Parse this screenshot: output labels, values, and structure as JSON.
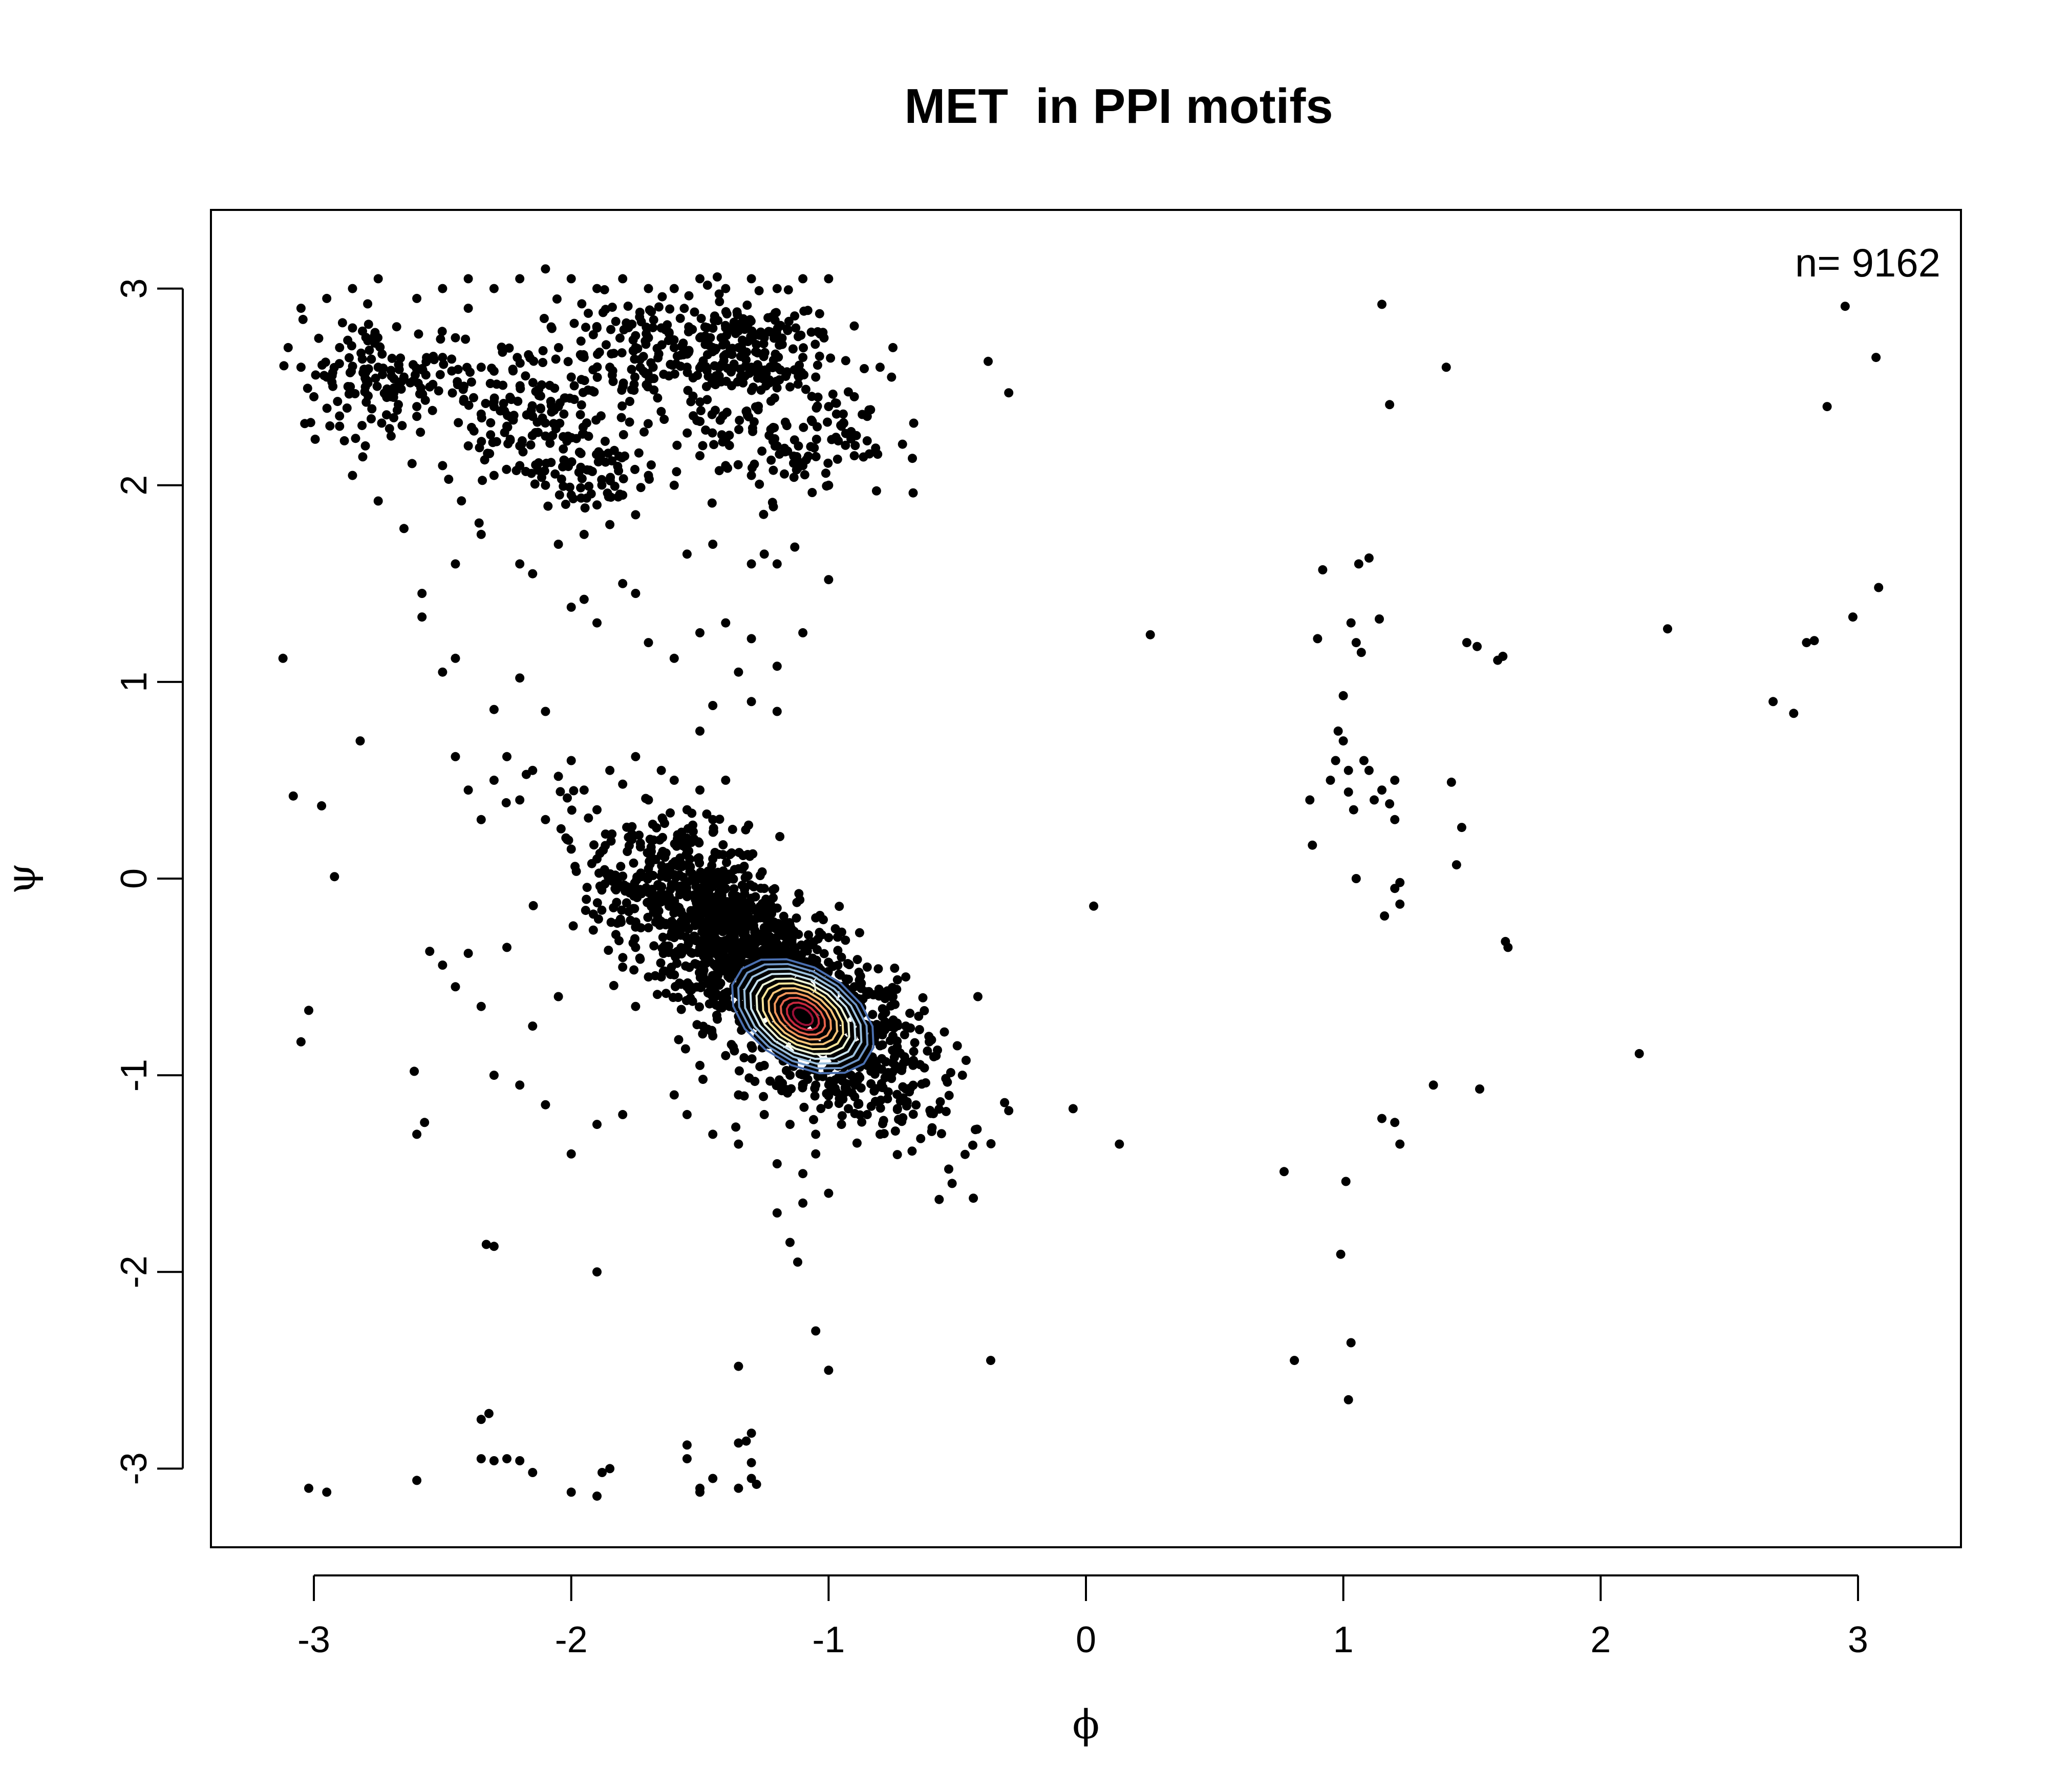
{
  "chart_data": {
    "type": "scatter",
    "title": "MET  in PPI motifs",
    "xlabel": "ϕ",
    "ylabel": "ψ",
    "xlim": [
      -3.4,
      3.4
    ],
    "ylim": [
      -3.4,
      3.4
    ],
    "xticks": [
      -3,
      -2,
      -1,
      0,
      1,
      2,
      3
    ],
    "yticks": [
      -3,
      -2,
      -1,
      0,
      1,
      2,
      3
    ],
    "xtick_labels": [
      "-3",
      "-2",
      "-1",
      "0",
      "1",
      "2",
      "3"
    ],
    "ytick_labels": [
      "-3",
      "-2",
      "-1",
      "0",
      "1",
      "2",
      "3"
    ],
    "annotation": "n= 9162",
    "grid": false,
    "point_color": "#000000",
    "contour_center": [
      -1.1,
      -0.7
    ],
    "contour_colors": [
      "#4a6fb0",
      "#6f96c7",
      "#9dc1dd",
      "#c9e3ee",
      "#eef6d8",
      "#fbe59a",
      "#f8c57a",
      "#f3985c",
      "#e4604b",
      "#c8283e",
      "#9b0f36"
    ],
    "points": [
      [
        -3.12,
        1.12
      ],
      [
        -3.08,
        0.42
      ],
      [
        -3.05,
        -0.83
      ],
      [
        -3.02,
        -0.67
      ],
      [
        -2.97,
        0.37
      ],
      [
        -2.92,
        0.01
      ],
      [
        -2.82,
        0.7
      ],
      [
        -2.6,
        -1.3
      ],
      [
        -2.57,
        -1.24
      ],
      [
        -2.61,
        -0.98
      ],
      [
        -2.55,
        -0.37
      ],
      [
        -2.5,
        -0.44
      ],
      [
        -2.45,
        -0.55
      ],
      [
        -2.4,
        -0.38
      ],
      [
        -2.35,
        -0.65
      ],
      [
        -2.3,
        -1.0
      ],
      [
        -2.2,
        -1.05
      ],
      [
        -2.1,
        -1.15
      ],
      [
        -2.0,
        -1.4
      ],
      [
        -1.9,
        -1.25
      ],
      [
        -1.8,
        -1.2
      ],
      [
        -1.75,
        -0.65
      ],
      [
        -1.7,
        -0.5
      ],
      [
        -2.05,
        -0.6
      ],
      [
        -2.15,
        -0.75
      ],
      [
        -2.25,
        -0.35
      ],
      [
        -2.45,
        0.62
      ],
      [
        -2.4,
        0.45
      ],
      [
        -2.35,
        0.3
      ],
      [
        -2.3,
        0.5
      ],
      [
        -2.25,
        0.62
      ],
      [
        -2.2,
        0.4
      ],
      [
        -2.15,
        0.55
      ],
      [
        -2.1,
        0.3
      ],
      [
        -2.05,
        0.52
      ],
      [
        -2.0,
        0.6
      ],
      [
        -1.95,
        0.45
      ],
      [
        -1.9,
        0.35
      ],
      [
        -1.85,
        0.55
      ],
      [
        -1.8,
        0.48
      ],
      [
        -1.75,
        0.62
      ],
      [
        -1.7,
        0.4
      ],
      [
        -1.65,
        0.55
      ],
      [
        -1.6,
        0.5
      ],
      [
        -1.55,
        0.35
      ],
      [
        -1.5,
        0.45
      ],
      [
        -1.45,
        0.3
      ],
      [
        -1.4,
        0.5
      ],
      [
        -2.0,
        0.15
      ],
      [
        -1.9,
        0.1
      ],
      [
        -2.5,
        1.05
      ],
      [
        -2.45,
        1.12
      ],
      [
        -2.3,
        0.86
      ],
      [
        -2.2,
        1.02
      ],
      [
        -2.1,
        0.85
      ],
      [
        -2.0,
        1.38
      ],
      [
        -1.95,
        1.42
      ],
      [
        -1.9,
        1.3
      ],
      [
        -1.8,
        1.5
      ],
      [
        -1.75,
        1.45
      ],
      [
        -1.7,
        1.2
      ],
      [
        -1.6,
        1.12
      ],
      [
        -1.5,
        1.25
      ],
      [
        -1.4,
        1.3
      ],
      [
        -1.3,
        1.22
      ],
      [
        -1.2,
        1.08
      ],
      [
        -1.3,
        0.9
      ],
      [
        -1.2,
        0.85
      ],
      [
        -1.35,
        1.05
      ],
      [
        -1.5,
        0.75
      ],
      [
        -1.45,
        0.88
      ],
      [
        -2.58,
        1.45
      ],
      [
        -2.58,
        1.33
      ],
      [
        -2.65,
        1.78
      ],
      [
        -1.1,
        1.25
      ],
      [
        -1.0,
        1.52
      ],
      [
        -1.2,
        1.6
      ],
      [
        -1.75,
        -0.05
      ],
      [
        -1.7,
        0.05
      ],
      [
        -1.65,
        -0.1
      ],
      [
        -1.6,
        0.02
      ],
      [
        -1.55,
        -0.08
      ],
      [
        -1.5,
        0.0
      ],
      [
        -1.45,
        -0.15
      ],
      [
        -1.4,
        -0.05
      ],
      [
        -1.35,
        -0.2
      ],
      [
        -1.3,
        -0.1
      ],
      [
        -1.25,
        -0.25
      ],
      [
        -1.2,
        -0.15
      ],
      [
        -1.7,
        -0.25
      ],
      [
        -1.6,
        -0.3
      ],
      [
        -1.5,
        -0.35
      ],
      [
        -1.4,
        -0.4
      ],
      [
        -1.65,
        0.12
      ],
      [
        -1.55,
        0.15
      ],
      [
        -1.45,
        0.1
      ],
      [
        -1.35,
        0.05
      ],
      [
        -1.25,
        -0.05
      ],
      [
        -1.15,
        -0.3
      ],
      [
        -1.75,
        -0.35
      ],
      [
        -1.8,
        -0.45
      ],
      [
        -1.65,
        -0.5
      ],
      [
        -1.55,
        -0.55
      ],
      [
        -1.45,
        -0.6
      ],
      [
        -1.35,
        -0.7
      ],
      [
        -1.3,
        -0.85
      ],
      [
        -1.25,
        -0.95
      ],
      [
        -1.15,
        -1.0
      ],
      [
        -1.05,
        -1.05
      ],
      [
        -0.95,
        -1.0
      ],
      [
        -0.85,
        -0.95
      ],
      [
        -0.8,
        -0.85
      ],
      [
        -0.75,
        -0.8
      ],
      [
        -0.7,
        -0.75
      ],
      [
        -0.65,
        -0.7
      ],
      [
        -0.6,
        -0.82
      ],
      [
        -0.55,
        -0.78
      ],
      [
        -0.5,
        -0.85
      ],
      [
        -0.48,
        -1.0
      ],
      [
        -0.9,
        -0.55
      ],
      [
        -0.85,
        -0.45
      ],
      [
        -0.95,
        -0.4
      ],
      [
        -1.0,
        -0.3
      ],
      [
        -1.05,
        -0.2
      ],
      [
        -0.75,
        -0.6
      ],
      [
        -0.7,
        -0.5
      ],
      [
        -1.45,
        -0.8
      ],
      [
        -1.4,
        -0.9
      ],
      [
        -1.5,
        -0.95
      ],
      [
        -1.35,
        -1.1
      ],
      [
        -1.25,
        -1.2
      ],
      [
        -1.15,
        -1.25
      ],
      [
        -1.05,
        -1.3
      ],
      [
        -0.95,
        -1.25
      ],
      [
        -0.85,
        -1.2
      ],
      [
        -0.8,
        -1.3
      ],
      [
        -1.6,
        -1.1
      ],
      [
        -1.55,
        -1.2
      ],
      [
        -1.45,
        -1.3
      ],
      [
        -1.35,
        -1.35
      ],
      [
        -1.2,
        -1.45
      ],
      [
        -1.1,
        -1.5
      ],
      [
        -1.0,
        -1.6
      ],
      [
        -1.1,
        -1.65
      ],
      [
        -1.15,
        -1.85
      ],
      [
        -1.12,
        -1.95
      ],
      [
        -1.2,
        -1.7
      ],
      [
        -1.05,
        -1.4
      ],
      [
        -0.52,
        -1.55
      ],
      [
        -0.3,
        -1.18
      ],
      [
        -0.05,
        -1.17
      ],
      [
        0.13,
        -1.35
      ],
      [
        0.03,
        -0.14
      ],
      [
        -0.42,
        -0.6
      ],
      [
        -1.05,
        -2.3
      ],
      [
        -1.0,
        -2.5
      ],
      [
        -1.35,
        -2.48
      ],
      [
        -0.37,
        -2.45
      ],
      [
        -1.9,
        -2.0
      ],
      [
        -2.3,
        -1.87
      ],
      [
        -2.33,
        -1.86
      ],
      [
        -2.35,
        -2.75
      ],
      [
        -2.32,
        -2.72
      ],
      [
        -2.35,
        -2.95
      ],
      [
        -2.3,
        -2.96
      ],
      [
        -2.25,
        -2.95
      ],
      [
        -2.2,
        -2.96
      ],
      [
        -2.15,
        -3.02
      ],
      [
        -2.0,
        -3.12
      ],
      [
        -1.9,
        -3.14
      ],
      [
        -1.88,
        -3.02
      ],
      [
        -1.85,
        -3.0
      ],
      [
        -1.55,
        -2.88
      ],
      [
        -1.55,
        -2.95
      ],
      [
        -1.5,
        -3.1
      ],
      [
        -1.5,
        -3.12
      ],
      [
        -1.45,
        -3.05
      ],
      [
        -1.35,
        -2.87
      ],
      [
        -1.32,
        -2.86
      ],
      [
        -1.3,
        -2.82
      ],
      [
        -1.3,
        -2.97
      ],
      [
        -1.3,
        -3.05
      ],
      [
        -1.28,
        -3.08
      ],
      [
        -1.35,
        -3.1
      ],
      [
        -3.02,
        -3.1
      ],
      [
        -2.95,
        -3.12
      ],
      [
        -2.6,
        -3.06
      ],
      [
        -3.1,
        2.7
      ],
      [
        -3.05,
        2.6
      ],
      [
        -3.0,
        2.45
      ],
      [
        -2.95,
        2.55
      ],
      [
        -2.9,
        2.7
      ],
      [
        -2.85,
        2.8
      ],
      [
        -2.8,
        2.5
      ],
      [
        -2.75,
        2.6
      ],
      [
        -2.7,
        2.45
      ],
      [
        -2.65,
        2.55
      ],
      [
        -2.6,
        2.4
      ],
      [
        -2.55,
        2.5
      ],
      [
        -2.5,
        2.65
      ],
      [
        -2.45,
        2.75
      ],
      [
        -2.4,
        2.9
      ],
      [
        -2.35,
        2.6
      ],
      [
        -2.3,
        2.4
      ],
      [
        -2.25,
        2.3
      ],
      [
        -2.2,
        2.2
      ],
      [
        -2.15,
        2.35
      ],
      [
        -2.1,
        2.25
      ],
      [
        -2.05,
        2.4
      ],
      [
        -2.0,
        2.55
      ],
      [
        -1.95,
        2.65
      ],
      [
        -1.9,
        2.8
      ],
      [
        -1.85,
        2.6
      ],
      [
        -1.8,
        2.5
      ],
      [
        -1.75,
        2.7
      ],
      [
        -1.7,
        2.75
      ],
      [
        -1.65,
        2.8
      ],
      [
        -1.6,
        2.7
      ],
      [
        -1.55,
        2.6
      ],
      [
        -1.5,
        2.75
      ],
      [
        -1.45,
        2.7
      ],
      [
        -1.4,
        2.8
      ],
      [
        -1.35,
        2.7
      ],
      [
        -1.3,
        2.6
      ],
      [
        -1.25,
        2.75
      ],
      [
        -1.2,
        2.6
      ],
      [
        -1.15,
        2.5
      ],
      [
        -1.1,
        2.65
      ],
      [
        -1.05,
        2.55
      ],
      [
        -1.0,
        2.4
      ],
      [
        -0.95,
        2.3
      ],
      [
        -0.9,
        2.45
      ],
      [
        -0.85,
        2.35
      ],
      [
        -0.8,
        2.6
      ],
      [
        -0.75,
        2.7
      ],
      [
        -3.05,
        2.9
      ],
      [
        -2.95,
        2.95
      ],
      [
        -2.85,
        3.0
      ],
      [
        -2.75,
        3.05
      ],
      [
        -2.6,
        2.95
      ],
      [
        -2.5,
        3.0
      ],
      [
        -2.4,
        3.05
      ],
      [
        -2.3,
        3.0
      ],
      [
        -2.2,
        3.05
      ],
      [
        -2.1,
        3.1
      ],
      [
        -2.0,
        3.05
      ],
      [
        -1.9,
        3.0
      ],
      [
        -1.8,
        3.05
      ],
      [
        -1.7,
        3.0
      ],
      [
        -1.6,
        3.0
      ],
      [
        -1.5,
        3.05
      ],
      [
        -1.4,
        3.0
      ],
      [
        -1.3,
        3.05
      ],
      [
        -1.2,
        3.0
      ],
      [
        -1.1,
        3.05
      ],
      [
        -1.0,
        3.05
      ],
      [
        -2.9,
        2.3
      ],
      [
        -2.8,
        2.2
      ],
      [
        -2.7,
        2.25
      ],
      [
        -2.6,
        2.35
      ],
      [
        -2.5,
        2.1
      ],
      [
        -2.4,
        2.2
      ],
      [
        -2.3,
        2.05
      ],
      [
        -2.2,
        2.1
      ],
      [
        -2.1,
        2.0
      ],
      [
        -2.0,
        1.95
      ],
      [
        -1.9,
        1.9
      ],
      [
        -1.85,
        1.8
      ],
      [
        -1.8,
        1.95
      ],
      [
        -1.75,
        1.85
      ],
      [
        -1.7,
        2.05
      ],
      [
        -1.6,
        2.0
      ],
      [
        -1.5,
        2.15
      ],
      [
        -1.4,
        2.1
      ],
      [
        -1.3,
        2.05
      ],
      [
        -1.2,
        2.2
      ],
      [
        -1.1,
        2.1
      ],
      [
        -1.0,
        2.0
      ],
      [
        -0.9,
        2.15
      ],
      [
        -1.95,
        1.75
      ],
      [
        -2.05,
        1.7
      ],
      [
        -2.15,
        1.55
      ],
      [
        -2.2,
        1.6
      ],
      [
        -2.35,
        1.75
      ],
      [
        -2.45,
        1.6
      ],
      [
        -1.55,
        1.65
      ],
      [
        -1.45,
        1.7
      ],
      [
        -1.3,
        1.6
      ],
      [
        -1.25,
        1.65
      ],
      [
        -2.75,
        1.92
      ],
      [
        -2.85,
        2.05
      ],
      [
        -0.38,
        2.63
      ],
      [
        -0.3,
        2.47
      ],
      [
        0.25,
        1.24
      ],
      [
        0.87,
        0.4
      ],
      [
        0.88,
        0.17
      ],
      [
        0.9,
        1.22
      ],
      [
        0.92,
        1.57
      ],
      [
        0.95,
        0.5
      ],
      [
        0.97,
        0.6
      ],
      [
        0.98,
        0.75
      ],
      [
        1.0,
        0.93
      ],
      [
        1.0,
        0.7
      ],
      [
        1.02,
        0.55
      ],
      [
        1.02,
        0.44
      ],
      [
        1.04,
        0.35
      ],
      [
        1.03,
        1.3
      ],
      [
        1.05,
        1.2
      ],
      [
        1.06,
        1.6
      ],
      [
        1.07,
        1.15
      ],
      [
        1.08,
        0.6
      ],
      [
        1.1,
        0.55
      ],
      [
        1.1,
        1.63
      ],
      [
        1.12,
        0.4
      ],
      [
        1.14,
        1.32
      ],
      [
        1.15,
        0.45
      ],
      [
        1.18,
        0.38
      ],
      [
        1.2,
        0.3
      ],
      [
        1.2,
        0.5
      ],
      [
        1.22,
        -0.02
      ],
      [
        1.2,
        -0.05
      ],
      [
        1.22,
        -0.13
      ],
      [
        1.16,
        -0.19
      ],
      [
        1.05,
        0.0
      ],
      [
        1.15,
        2.92
      ],
      [
        1.18,
        2.41
      ],
      [
        1.4,
        2.6
      ],
      [
        1.42,
        0.49
      ],
      [
        1.44,
        0.07
      ],
      [
        1.46,
        0.26
      ],
      [
        1.48,
        1.2
      ],
      [
        1.52,
        1.18
      ],
      [
        1.6,
        1.11
      ],
      [
        1.62,
        1.13
      ],
      [
        1.63,
        -0.32
      ],
      [
        1.64,
        -0.35
      ],
      [
        1.35,
        -1.05
      ],
      [
        1.53,
        -1.07
      ],
      [
        1.15,
        -1.22
      ],
      [
        1.2,
        -1.24
      ],
      [
        1.22,
        -1.35
      ],
      [
        0.77,
        -1.49
      ],
      [
        1.01,
        -1.54
      ],
      [
        0.99,
        -1.91
      ],
      [
        0.81,
        -2.45
      ],
      [
        1.03,
        -2.36
      ],
      [
        1.02,
        -2.65
      ],
      [
        2.15,
        -0.89
      ],
      [
        2.26,
        1.27
      ],
      [
        2.67,
        0.9
      ],
      [
        2.75,
        0.84
      ],
      [
        2.8,
        1.2
      ],
      [
        2.83,
        1.21
      ],
      [
        2.88,
        2.4
      ],
      [
        2.95,
        2.91
      ],
      [
        2.98,
        1.33
      ],
      [
        3.07,
        2.65
      ],
      [
        3.08,
        1.48
      ]
    ]
  }
}
